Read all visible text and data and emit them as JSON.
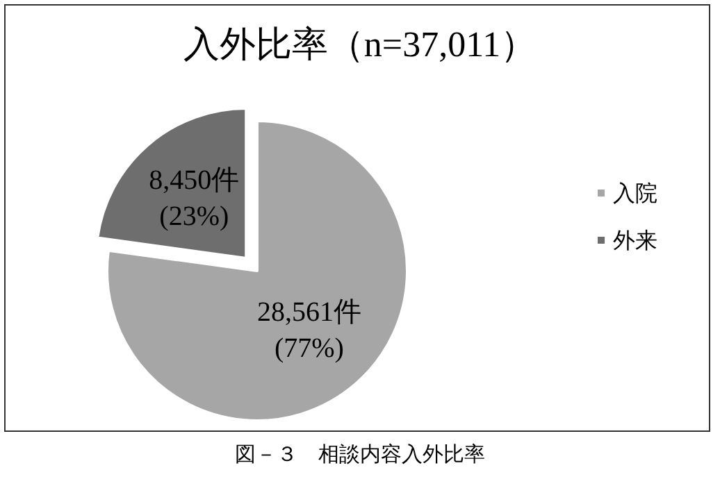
{
  "chart_data": {
    "type": "pie",
    "title": "入外比率（n=37,011）",
    "categories": [
      "入院",
      "外来"
    ],
    "values": [
      28561,
      8450
    ],
    "colors": [
      "#a6a6a6",
      "#6e6e6e"
    ],
    "value_labels": [
      "28,561件\n(77%)",
      "8,450件\n(23%)"
    ],
    "legend": "right",
    "annotations": [
      "図－３　相談内容入外比率"
    ]
  }
}
